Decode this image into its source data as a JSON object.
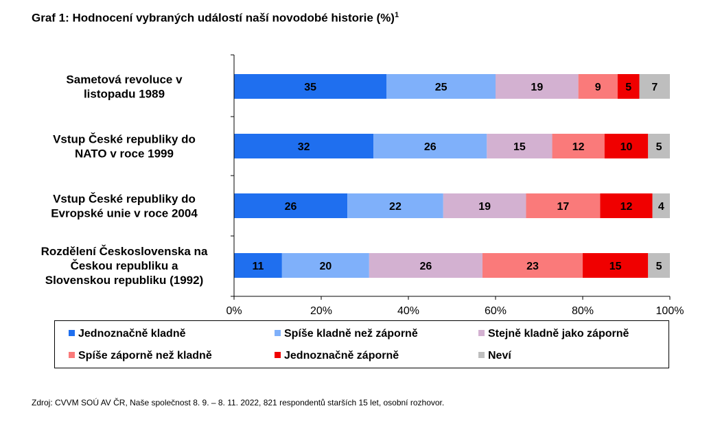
{
  "title": "Graf 1: Hodnocení vybraných událostí naší novodobé historie (%)",
  "title_superscript": "1",
  "source": "Zdroj: CVVM SOÚ AV ČR, Naše společnost 8. 9. – 8. 11. 2022, 821 respondentů starších 15 let, osobní rozhovor.",
  "chart_data": {
    "type": "bar",
    "orientation": "horizontal",
    "stacked": true,
    "percent": true,
    "categories": [
      [
        "Sametová revoluce v",
        "listopadu 1989"
      ],
      [
        "Vstup České republiky do",
        "NATO v roce 1999"
      ],
      [
        "Vstup České republiky do",
        "Evropské unie v roce 2004"
      ],
      [
        "Rozdělení Československa na",
        "Českou republiku a",
        "Slovenskou republiku (1992)"
      ]
    ],
    "series": [
      {
        "name": "Jednoznačně kladně",
        "color": "#1F6FEF",
        "values": [
          35,
          32,
          26,
          11
        ]
      },
      {
        "name": "Spíše kladně než záporně",
        "color": "#7FB0FA",
        "values": [
          25,
          26,
          22,
          20
        ]
      },
      {
        "name": "Stejně kladně jako záporně",
        "color": "#D3B1D1",
        "values": [
          19,
          15,
          19,
          26
        ]
      },
      {
        "name": "Spíše záporně než kladně",
        "color": "#FA7A7A",
        "values": [
          9,
          12,
          17,
          23
        ]
      },
      {
        "name": "Jednoznačně záporně",
        "color": "#F00000",
        "values": [
          5,
          10,
          12,
          15
        ]
      },
      {
        "name": "Neví",
        "color": "#BEBEBE",
        "values": [
          7,
          5,
          4,
          5
        ]
      }
    ],
    "xlim": [
      0,
      100
    ],
    "xticks": [
      "0%",
      "20%",
      "40%",
      "60%",
      "80%",
      "100%"
    ],
    "grid": false,
    "legend_position": "bottom"
  }
}
